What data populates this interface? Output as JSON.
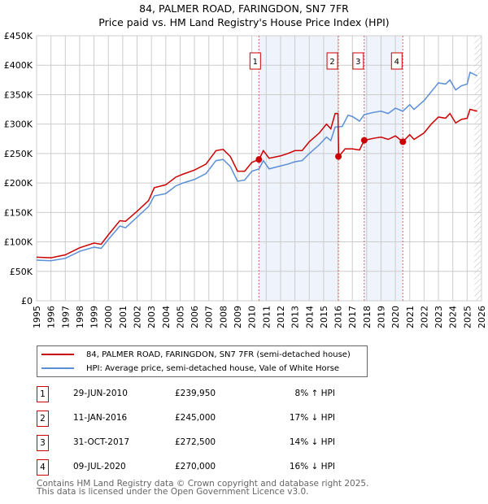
{
  "chart_data": {
    "type": "line",
    "title": "84, PALMER ROAD, FARINGDON, SN7 7FR",
    "subtitle": "Price paid vs. HM Land Registry's House Price Index (HPI)",
    "xlim": [
      1995,
      2026
    ],
    "ylim": [
      0,
      450000
    ],
    "x_ticks": [
      "1995",
      "1996",
      "1997",
      "1998",
      "1999",
      "2000",
      "2001",
      "2002",
      "2003",
      "2004",
      "2005",
      "2006",
      "2007",
      "2008",
      "2009",
      "2010",
      "2011",
      "2012",
      "2013",
      "2014",
      "2015",
      "2016",
      "2017",
      "2018",
      "2019",
      "2020",
      "2021",
      "2022",
      "2023",
      "2024",
      "2025",
      "2026"
    ],
    "y_ticks": [
      {
        "v": 0,
        "l": "£0"
      },
      {
        "v": 50000,
        "l": "£50K"
      },
      {
        "v": 100000,
        "l": "£100K"
      },
      {
        "v": 150000,
        "l": "£150K"
      },
      {
        "v": 200000,
        "l": "£200K"
      },
      {
        "v": 250000,
        "l": "£250K"
      },
      {
        "v": 300000,
        "l": "£300K"
      },
      {
        "v": 350000,
        "l": "£350K"
      },
      {
        "v": 400000,
        "l": "£400K"
      },
      {
        "v": 450000,
        "l": "£450K"
      }
    ],
    "grid": true,
    "series": [
      {
        "name": "84, PALMER ROAD, FARINGDON, SN7 7FR (semi-detached house)",
        "color": "#cc0000",
        "points": [
          [
            1995,
            74000
          ],
          [
            1996,
            73000
          ],
          [
            1997,
            78000
          ],
          [
            1998,
            90000
          ],
          [
            1999,
            98000
          ],
          [
            1999.5,
            96000
          ],
          [
            2000,
            112000
          ],
          [
            2000.8,
            136000
          ],
          [
            2001.2,
            135000
          ],
          [
            2002,
            152000
          ],
          [
            2002.8,
            170000
          ],
          [
            2003.2,
            192000
          ],
          [
            2004,
            197000
          ],
          [
            2004.7,
            210000
          ],
          [
            2005.2,
            215000
          ],
          [
            2006,
            222000
          ],
          [
            2006.8,
            232000
          ],
          [
            2007.5,
            255000
          ],
          [
            2008,
            257000
          ],
          [
            2008.5,
            245000
          ],
          [
            2009,
            220000
          ],
          [
            2009.5,
            220000
          ],
          [
            2010,
            235000
          ],
          [
            2010.5,
            240000
          ],
          [
            2010.8,
            255000
          ],
          [
            2011.2,
            242000
          ],
          [
            2012,
            246000
          ],
          [
            2012.5,
            250000
          ],
          [
            2013,
            255000
          ],
          [
            2013.5,
            255000
          ],
          [
            2014,
            270000
          ],
          [
            2014.7,
            285000
          ],
          [
            2015.2,
            300000
          ],
          [
            2015.5,
            292000
          ],
          [
            2015.8,
            318000
          ],
          [
            2016,
            318000
          ],
          [
            2016.05,
            245000
          ],
          [
            2016.5,
            258000
          ],
          [
            2017,
            258000
          ],
          [
            2017.5,
            256000
          ],
          [
            2017.83,
            272500
          ],
          [
            2018.5,
            276000
          ],
          [
            2019,
            278000
          ],
          [
            2019.5,
            274000
          ],
          [
            2020,
            280000
          ],
          [
            2020.52,
            270000
          ],
          [
            2021,
            282000
          ],
          [
            2021.3,
            274000
          ],
          [
            2022,
            285000
          ],
          [
            2022.5,
            300000
          ],
          [
            2023,
            312000
          ],
          [
            2023.5,
            310000
          ],
          [
            2023.8,
            318000
          ],
          [
            2024.2,
            302000
          ],
          [
            2024.6,
            308000
          ],
          [
            2025,
            310000
          ],
          [
            2025.2,
            325000
          ],
          [
            2025.7,
            322000
          ]
        ]
      },
      {
        "name": "HPI: Average price, semi-detached house, Vale of White Horse",
        "color": "#5b8fd6",
        "points": [
          [
            1995,
            69000
          ],
          [
            1996,
            68000
          ],
          [
            1997,
            72000
          ],
          [
            1998,
            84000
          ],
          [
            1999,
            91000
          ],
          [
            1999.5,
            89000
          ],
          [
            2000,
            104000
          ],
          [
            2000.8,
            127000
          ],
          [
            2001.2,
            124000
          ],
          [
            2002,
            142000
          ],
          [
            2002.8,
            160000
          ],
          [
            2003.2,
            178000
          ],
          [
            2004,
            182000
          ],
          [
            2004.7,
            195000
          ],
          [
            2005.2,
            200000
          ],
          [
            2006,
            206000
          ],
          [
            2006.8,
            216000
          ],
          [
            2007.5,
            238000
          ],
          [
            2008,
            240000
          ],
          [
            2008.5,
            228000
          ],
          [
            2009,
            203000
          ],
          [
            2009.5,
            205000
          ],
          [
            2010,
            220000
          ],
          [
            2010.5,
            224000
          ],
          [
            2010.8,
            238000
          ],
          [
            2011.2,
            224000
          ],
          [
            2012,
            229000
          ],
          [
            2012.5,
            232000
          ],
          [
            2013,
            236000
          ],
          [
            2013.5,
            238000
          ],
          [
            2014,
            250000
          ],
          [
            2014.7,
            265000
          ],
          [
            2015.2,
            278000
          ],
          [
            2015.5,
            272000
          ],
          [
            2015.8,
            295000
          ],
          [
            2016.3,
            296000
          ],
          [
            2016.7,
            315000
          ],
          [
            2017,
            313000
          ],
          [
            2017.5,
            305000
          ],
          [
            2017.83,
            316000
          ],
          [
            2018.5,
            320000
          ],
          [
            2019,
            322000
          ],
          [
            2019.5,
            318000
          ],
          [
            2020,
            327000
          ],
          [
            2020.52,
            322000
          ],
          [
            2021,
            333000
          ],
          [
            2021.3,
            325000
          ],
          [
            2022,
            340000
          ],
          [
            2022.5,
            355000
          ],
          [
            2023,
            370000
          ],
          [
            2023.5,
            368000
          ],
          [
            2023.8,
            375000
          ],
          [
            2024.2,
            358000
          ],
          [
            2024.6,
            365000
          ],
          [
            2025,
            368000
          ],
          [
            2025.2,
            388000
          ],
          [
            2025.7,
            382000
          ]
        ]
      }
    ],
    "sales": [
      {
        "id": "1",
        "x": 2010.49,
        "y": 239950,
        "date": "29-JUN-2010",
        "price": "£239,950",
        "hpi": "8% ↑ HPI"
      },
      {
        "id": "2",
        "x": 2016.03,
        "y": 245000,
        "date": "11-JAN-2016",
        "price": "£245,000",
        "hpi": "17% ↓ HPI"
      },
      {
        "id": "3",
        "x": 2017.83,
        "y": 272500,
        "date": "31-OCT-2017",
        "price": "£272,500",
        "hpi": "14% ↓ HPI"
      },
      {
        "id": "4",
        "x": 2020.52,
        "y": 270000,
        "date": "09-JUL-2020",
        "price": "£270,000",
        "hpi": "16% ↓ HPI"
      }
    ],
    "shaded": [
      [
        2010.49,
        2016.03
      ],
      [
        2017.83,
        2020.52
      ]
    ],
    "forecast_from": 2025.5
  },
  "footer": [
    "Contains HM Land Registry data © Crown copyright and database right 2025.",
    "This data is licensed under the Open Government Licence v3.0."
  ]
}
